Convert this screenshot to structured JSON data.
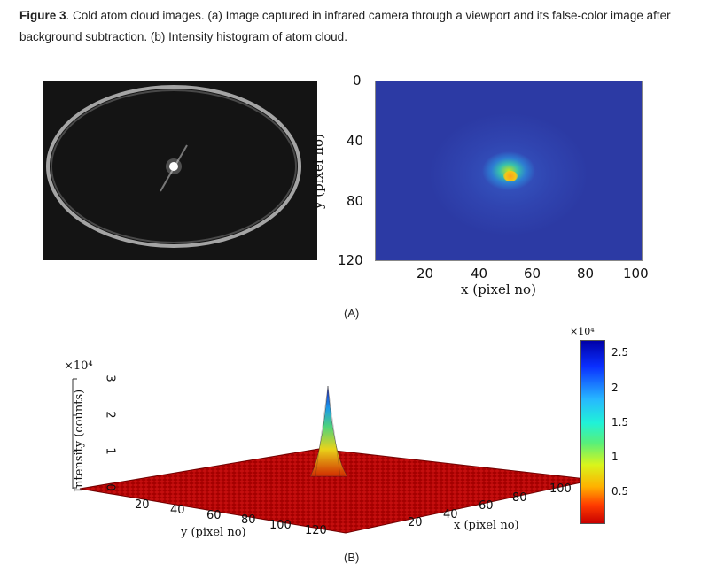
{
  "caption": {
    "label": "Figure 3",
    "text": ". Cold atom cloud images. (a) Image captured in infrared camera through a viewport and its false-color image after background subtraction. (b) Intensity histogram of atom cloud."
  },
  "panel_a": {
    "label": "(A)",
    "heatmap": {
      "y_ticks": [
        "0",
        "40",
        "80",
        "120"
      ],
      "x_ticks": [
        "20",
        "40",
        "60",
        "80",
        "100"
      ],
      "xlabel": "x (pixel no)",
      "ylabel": "y (pixel no)"
    }
  },
  "panel_b": {
    "label": "(B)",
    "zlabel": "Intensity (counts)",
    "z_exponent": "×10⁴",
    "z_ticks": [
      "3",
      "2",
      "1",
      "0"
    ],
    "y_ticks": [
      "20",
      "40",
      "60",
      "80",
      "100",
      "120"
    ],
    "x_ticks": [
      "20",
      "40",
      "60",
      "80",
      "100"
    ],
    "ylabel": "y (pixel no)",
    "xlabel": "x (pixel no)",
    "colorbar": {
      "exponent": "×10⁴",
      "ticks": [
        "2.5",
        "2",
        "1.5",
        "1",
        "0.5"
      ]
    }
  },
  "chart_data": [
    {
      "type": "heatmap",
      "xlabel": "x (pixel no)",
      "ylabel": "y (pixel no)",
      "xlim": [
        0,
        100
      ],
      "ylim": [
        120,
        0
      ],
      "peak": {
        "x": 50,
        "y": 60
      }
    },
    {
      "type": "surface",
      "xlabel": "x (pixel no)",
      "ylabel": "y (pixel no)",
      "zlabel": "Intensity (counts)",
      "zlim": [
        0,
        30000
      ],
      "peak_value": 27000,
      "colorbar_range": [
        0,
        27000
      ]
    }
  ],
  "colors": {
    "photo_bg": "#141414",
    "heat_bg": "#2c3aa4",
    "surface_base": "#b40000"
  }
}
